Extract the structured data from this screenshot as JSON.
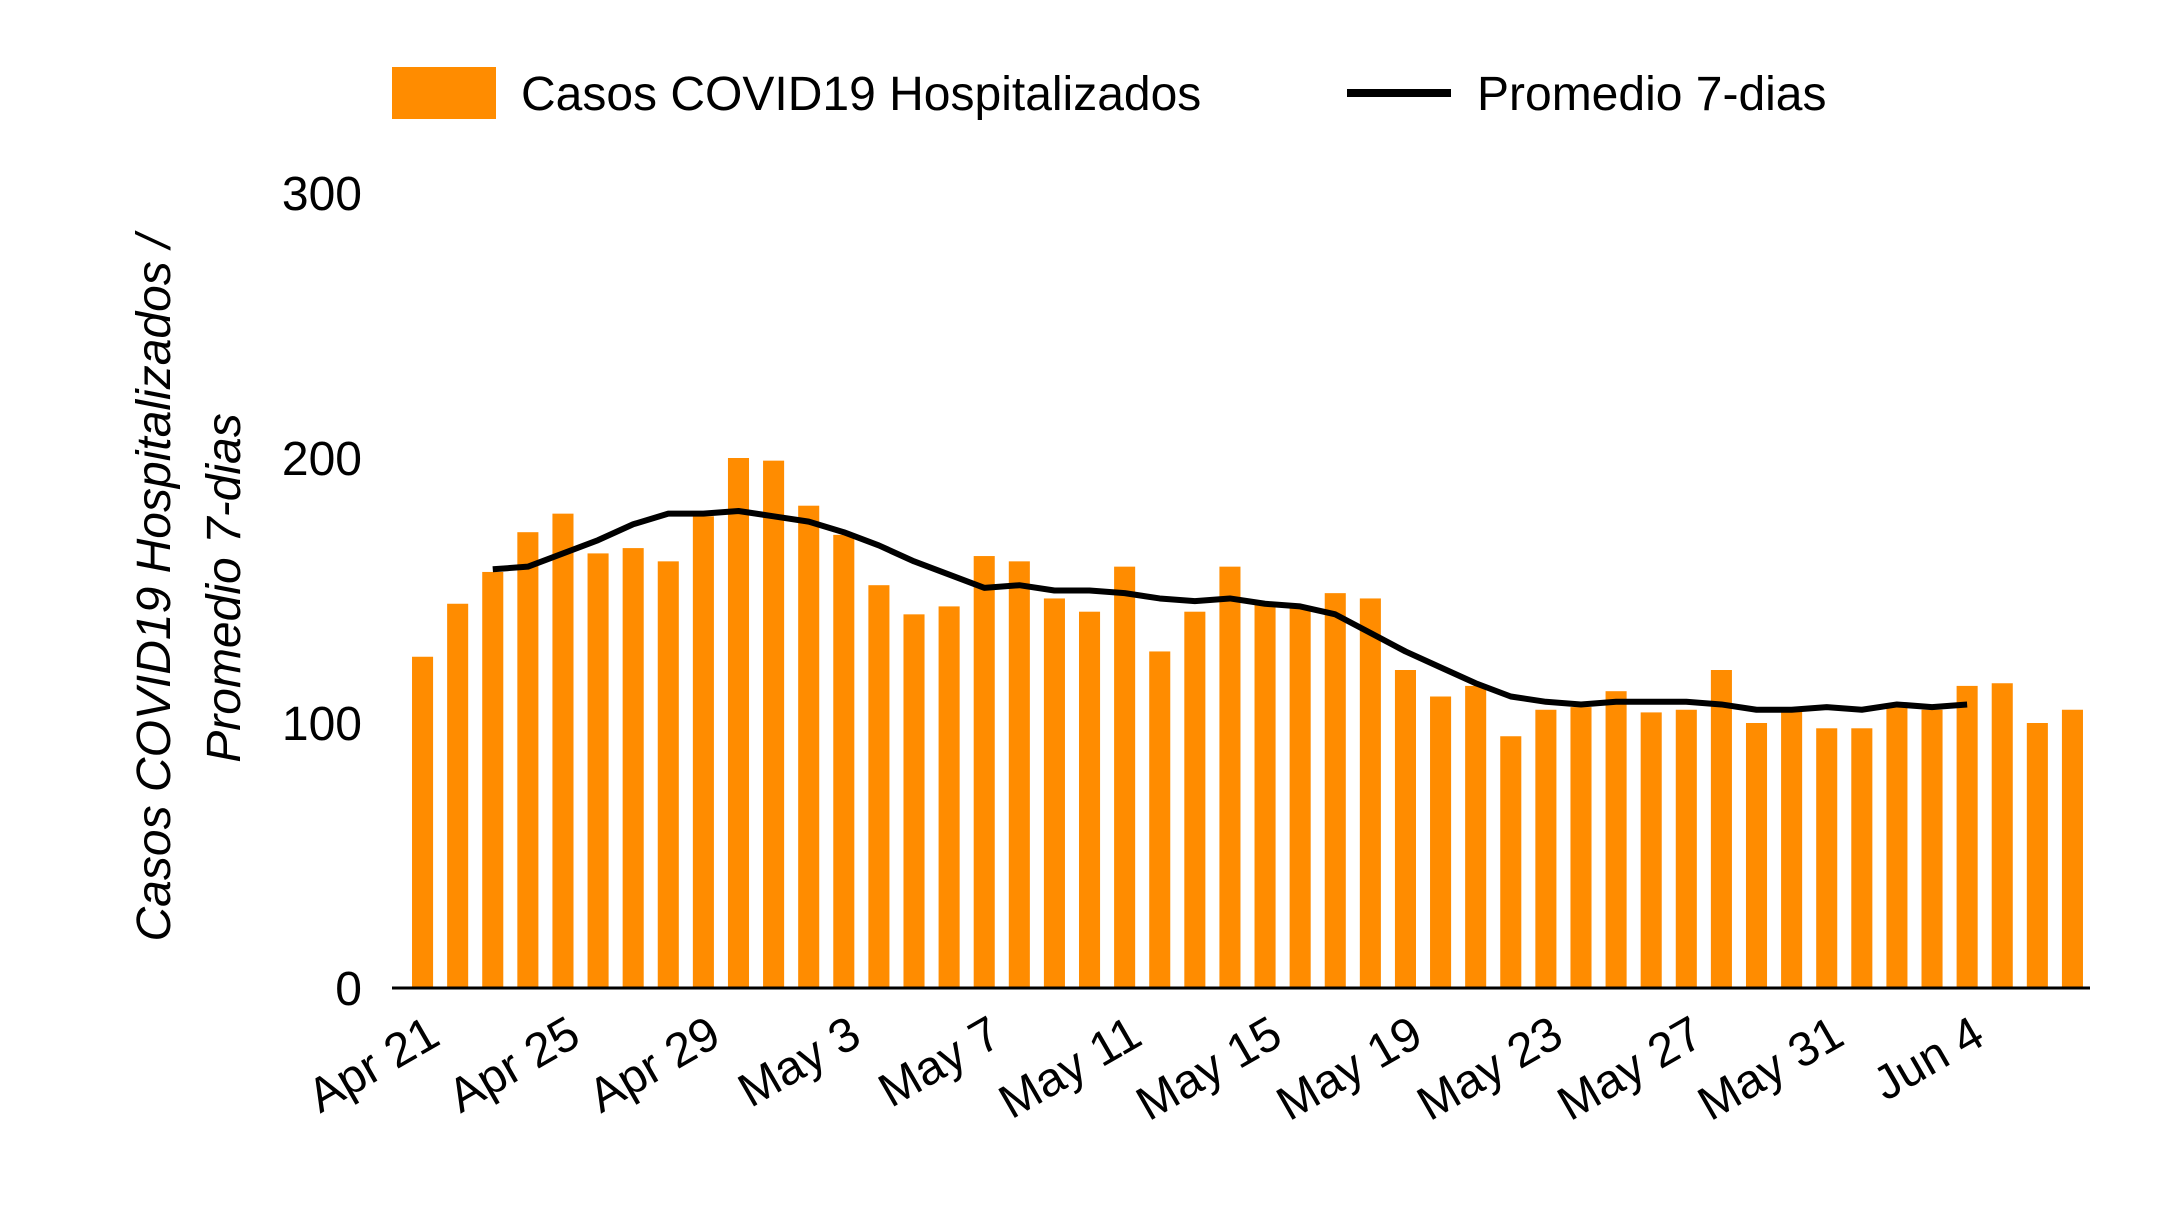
{
  "chart_data": {
    "type": "bar",
    "ylabel": [
      "Casos COVID19 Hospitalizados /",
      "Promedio 7-dias"
    ],
    "categories": [
      "Apr 21",
      null,
      null,
      null,
      "Apr 25",
      null,
      null,
      null,
      "Apr 29",
      null,
      null,
      null,
      "May 3",
      null,
      null,
      null,
      "May 7",
      null,
      null,
      null,
      "May 11",
      null,
      null,
      null,
      "May 15",
      null,
      null,
      null,
      "May 19",
      null,
      null,
      null,
      "May 23",
      null,
      null,
      null,
      "May 27",
      null,
      null,
      null,
      "May 31",
      null,
      null,
      null,
      "Jun 4",
      null,
      null,
      null
    ],
    "series": [
      {
        "name": "Casos COVID19 Hospitalizados",
        "type": "bar",
        "color": "#ff8c00",
        "values": [
          125,
          145,
          157,
          172,
          179,
          164,
          166,
          161,
          178,
          200,
          199,
          182,
          171,
          152,
          141,
          144,
          163,
          161,
          147,
          142,
          159,
          127,
          142,
          159,
          145,
          144,
          149,
          147,
          120,
          110,
          114,
          95,
          105,
          106,
          112,
          104,
          105,
          120,
          100,
          105,
          98,
          98,
          106,
          105,
          114,
          115,
          100,
          105
        ]
      },
      {
        "name": "Promedio 7-dias",
        "type": "line",
        "color": "#000000",
        "values": [
          null,
          null,
          158,
          159,
          164,
          169,
          175,
          179,
          179,
          180,
          178,
          176,
          172,
          167,
          161,
          156,
          151,
          152,
          150,
          150,
          149,
          147,
          146,
          147,
          145,
          144,
          141,
          134,
          127,
          121,
          115,
          110,
          108,
          107,
          108,
          108,
          108,
          107,
          105,
          105,
          106,
          105,
          107,
          106,
          107,
          null,
          null,
          null
        ]
      }
    ],
    "ylim": [
      0,
      300
    ],
    "yticks": [
      0,
      100,
      200,
      300
    ],
    "grid": false,
    "legend": "top"
  }
}
